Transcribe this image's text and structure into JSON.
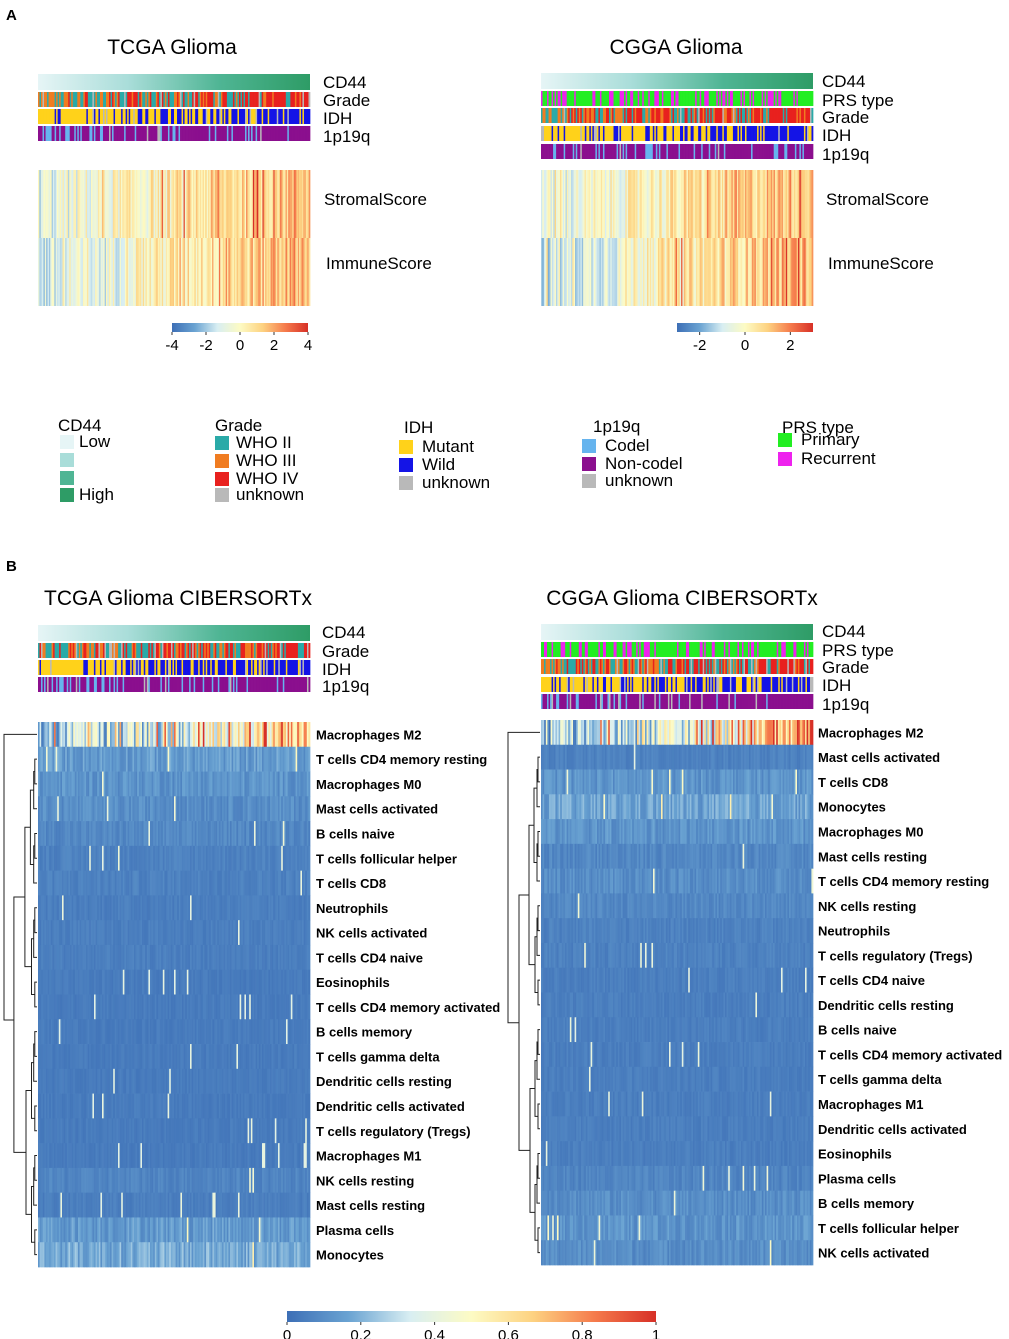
{
  "panels": {
    "a": "A",
    "b": "B"
  },
  "colors": {
    "cd44_gradient": [
      "#e6f5f6",
      "#a9ddd9",
      "#4fb594",
      "#2e9c66"
    ],
    "grade": {
      "WHO II": "#2aaaa8",
      "WHO III": "#f07c21",
      "WHO IV": "#e8211e",
      "unknown": "#b9b9b9"
    },
    "idh": {
      "Mutant": "#ffd21a",
      "Wild": "#1414e6",
      "unknown": "#b9b9b9"
    },
    "p1p19q": {
      "Codel": "#66b4ee",
      "Non-codel": "#8b0f8e",
      "unknown": "#b9b9b9"
    },
    "prs": {
      "Primary": "#22ee22",
      "Recurrent": "#ee22ee"
    },
    "heat_scale": [
      "#3d6fb6",
      "#6aa3d2",
      "#d8eef2",
      "#fdfbc4",
      "#fdd281",
      "#f57b4c",
      "#d73027"
    ]
  },
  "chart_data": [
    {
      "type": "heatmap",
      "id": "tcga-scores",
      "title": "TCGA Glioma",
      "annotation_tracks": [
        "CD44",
        "Grade",
        "IDH",
        "1p19q"
      ],
      "rows": [
        "StromalScore",
        "ImmuneScore"
      ],
      "colorbar": {
        "ticks": [
          "-4",
          "-2",
          "0",
          "2",
          "4"
        ],
        "range": [
          -4,
          4
        ]
      }
    },
    {
      "type": "heatmap",
      "id": "cgga-scores",
      "title": "CGGA Glioma",
      "annotation_tracks": [
        "CD44",
        "PRS type",
        "Grade",
        "IDH",
        "1p19q"
      ],
      "rows": [
        "StromalScore",
        "ImmuneScore"
      ],
      "colorbar": {
        "ticks": [
          "-2",
          "0",
          "2"
        ],
        "range": [
          -3,
          3
        ]
      }
    },
    {
      "type": "heatmap",
      "id": "tcga-cibersortx",
      "title": "TCGA Glioma CIBERSORTx",
      "annotation_tracks": [
        "CD44",
        "Grade",
        "IDH",
        "1p19q"
      ],
      "rows": [
        "Macrophages M2",
        "T cells CD4 memory resting",
        "Macrophages M0",
        "Mast cells activated",
        "B cells naive",
        "T cells follicular helper",
        "T cells CD8",
        "Neutrophils",
        "NK cells activated",
        "T cells CD4 naive",
        "Eosinophils",
        "T cells CD4 memory activated",
        "B cells memory",
        "T cells gamma delta",
        "Dendritic cells resting",
        "Dendritic cells activated",
        "T cells regulatory (Tregs)",
        "Macrophages M1",
        "NK cells resting",
        "Mast cells resting",
        "Plasma cells",
        "Monocytes"
      ],
      "row_intensity": [
        0.55,
        0.14,
        0.12,
        0.1,
        0.08,
        0.06,
        0.06,
        0.05,
        0.05,
        0.05,
        0.04,
        0.04,
        0.04,
        0.04,
        0.04,
        0.04,
        0.04,
        0.04,
        0.07,
        0.05,
        0.14,
        0.18
      ]
    },
    {
      "type": "heatmap",
      "id": "cgga-cibersortx",
      "title": "CGGA Glioma CIBERSORTx",
      "annotation_tracks": [
        "CD44",
        "PRS type",
        "Grade",
        "IDH",
        "1p19q"
      ],
      "rows": [
        "Macrophages M2",
        "Mast cells activated",
        "T cells CD8",
        "Monocytes",
        "Macrophages M0",
        "Mast cells resting",
        "T cells CD4 memory resting",
        "NK cells resting",
        "Neutrophils",
        "T cells regulatory (Tregs)",
        "T cells CD4 naive",
        "Dendritic cells resting",
        "B cells naive",
        "T cells CD4 memory activated",
        "T cells gamma delta",
        "Macrophages M1",
        "Dendritic cells activated",
        "Eosinophils",
        "Plasma cells",
        "B cells memory",
        "T cells follicular helper",
        "NK cells activated"
      ],
      "row_intensity": [
        0.55,
        0.06,
        0.12,
        0.16,
        0.12,
        0.08,
        0.1,
        0.08,
        0.06,
        0.06,
        0.05,
        0.05,
        0.05,
        0.05,
        0.05,
        0.05,
        0.05,
        0.05,
        0.07,
        0.1,
        0.12,
        0.1
      ]
    }
  ],
  "cibersort_colorbar": {
    "ticks": [
      "0",
      "0.2",
      "0.4",
      "0.6",
      "0.8",
      "1"
    ],
    "range": [
      0,
      1
    ]
  },
  "legend": [
    {
      "title": "CD44",
      "items": [
        "Low",
        "",
        "",
        "High"
      ]
    },
    {
      "title": "Grade",
      "items": [
        "WHO II",
        "WHO III",
        "WHO IV",
        "unknown"
      ]
    },
    {
      "title": "IDH",
      "items": [
        "Mutant",
        "Wild",
        "unknown"
      ]
    },
    {
      "title": "1p19q",
      "items": [
        "Codel",
        "Non-codel",
        "unknown"
      ]
    },
    {
      "title": "PRS type",
      "items": [
        "Primary",
        "Recurrent"
      ]
    }
  ]
}
